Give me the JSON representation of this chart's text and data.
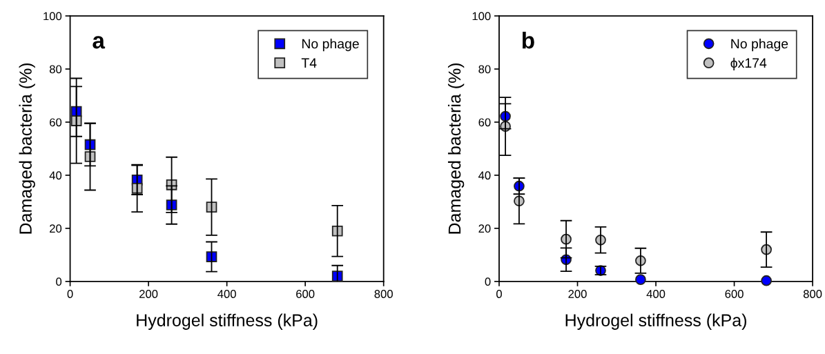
{
  "chart_data": [
    {
      "type": "scatter",
      "xlabel": "Hydrogel stiffness (kPa)",
      "ylabel": "Damaged bacteria (%)",
      "annotations": [
        "a"
      ],
      "x": [
        16,
        51,
        171,
        259,
        361,
        682
      ],
      "xlim": [
        0,
        800
      ],
      "xticks": [
        0,
        200,
        400,
        600,
        800
      ],
      "ylim": [
        0,
        100
      ],
      "yticks": [
        0,
        20,
        40,
        60,
        80,
        100
      ],
      "marker": "square",
      "legend": "top right",
      "grid": false,
      "series": [
        {
          "name": "No phage",
          "color": "#0000ff",
          "values": [
            64,
            51.5,
            38.2,
            28.8,
            9.3,
            2
          ],
          "errors": [
            9.4,
            8,
            5.5,
            7.2,
            5.6,
            4
          ]
        },
        {
          "name": "T4",
          "color": "#c0c0c0",
          "values": [
            60.5,
            47,
            35.1,
            36.4,
            28,
            19
          ],
          "errors": [
            16,
            12.6,
            8.9,
            10.4,
            10.6,
            9.6
          ]
        }
      ]
    },
    {
      "type": "scatter",
      "xlabel": "Hydrogel stiffness (kPa)",
      "ylabel": "Damaged bacteria (%)",
      "annotations": [
        "b"
      ],
      "x": [
        16,
        51,
        171,
        259,
        361,
        682
      ],
      "xlim": [
        0,
        800
      ],
      "xticks": [
        0,
        200,
        400,
        600,
        800
      ],
      "ylim": [
        0,
        100
      ],
      "yticks": [
        0,
        20,
        40,
        60,
        80,
        100
      ],
      "marker": "circle",
      "legend": "top right",
      "grid": false,
      "series": [
        {
          "name": "No phage",
          "color": "#0000ff",
          "values": [
            62.2,
            35.9,
            8.2,
            4.1,
            0.7,
            0.3
          ],
          "errors": [
            4.7,
            3,
            4.4,
            1.6,
            null,
            null
          ]
        },
        {
          "name": "ϕx174",
          "color": "#c0c0c0",
          "values": [
            58.4,
            30.3,
            15.9,
            15.6,
            7.8,
            12
          ],
          "errors": [
            10.9,
            8.6,
            7,
            4.9,
            4.7,
            6.6
          ]
        }
      ]
    }
  ]
}
